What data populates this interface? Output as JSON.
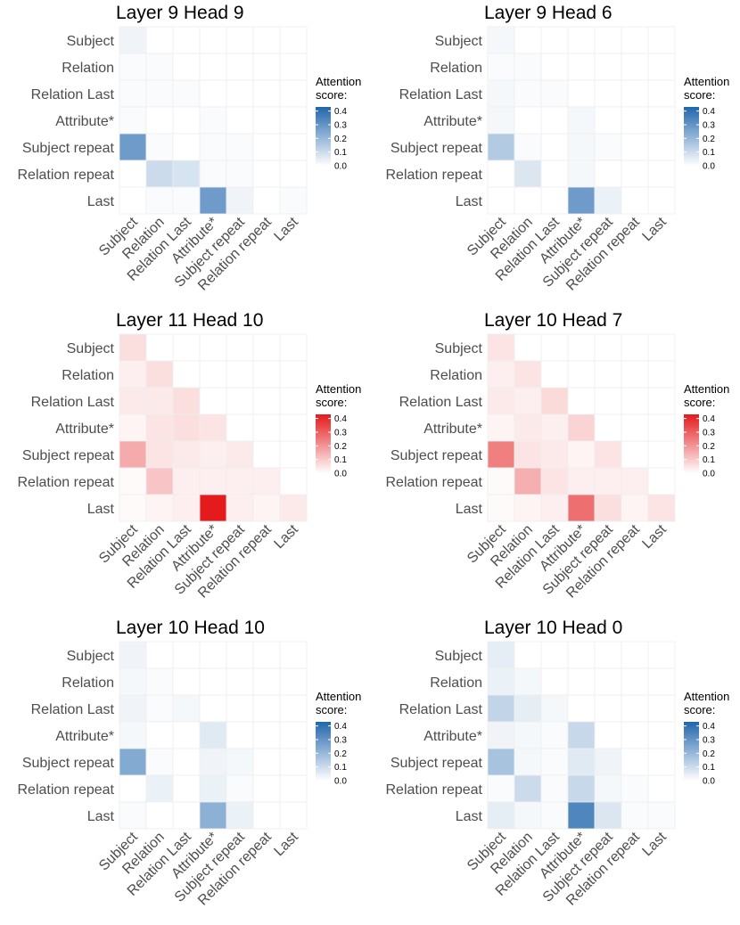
{
  "chart_data": [
    {
      "type": "heatmap",
      "title": "Layer 9 Head 9",
      "color_scale": "blue",
      "rows": [
        "Subject",
        "Relation",
        "Relation Last",
        "Attribute*",
        "Subject repeat",
        "Relation repeat",
        "Last"
      ],
      "columns": [
        "Subject",
        "Relation",
        "Relation Last",
        "Attribute*",
        "Subject repeat",
        "Relation repeat",
        "Last"
      ],
      "values": [
        [
          0.03,
          null,
          null,
          null,
          null,
          null,
          null
        ],
        [
          0.01,
          0.01,
          null,
          null,
          null,
          null,
          null
        ],
        [
          0.01,
          0.01,
          0.01,
          null,
          null,
          null,
          null
        ],
        [
          0.01,
          0.0,
          0.0,
          0.01,
          null,
          null,
          null
        ],
        [
          0.28,
          0.01,
          0.0,
          0.01,
          0.01,
          null,
          null
        ],
        [
          0.0,
          0.1,
          0.08,
          0.01,
          0.01,
          0.0,
          null
        ],
        [
          0.0,
          0.01,
          0.01,
          0.28,
          0.03,
          0.0,
          0.01
        ]
      ],
      "legend": {
        "title": [
          "Attention",
          "score:"
        ],
        "ticks": [
          "0.0",
          "0.1",
          "0.2",
          "0.3",
          "0.4"
        ],
        "range": [
          0,
          0.43
        ]
      }
    },
    {
      "type": "heatmap",
      "title": "Layer 9 Head 6",
      "color_scale": "blue",
      "rows": [
        "Subject",
        "Relation",
        "Relation Last",
        "Attribute*",
        "Subject repeat",
        "Relation repeat",
        "Last"
      ],
      "columns": [
        "Subject",
        "Relation",
        "Relation Last",
        "Attribute*",
        "Subject repeat",
        "Relation repeat",
        "Last"
      ],
      "values": [
        [
          0.02,
          null,
          null,
          null,
          null,
          null,
          null
        ],
        [
          0.01,
          0.01,
          null,
          null,
          null,
          null,
          null
        ],
        [
          0.02,
          0.01,
          0.01,
          null,
          null,
          null,
          null
        ],
        [
          0.02,
          0.0,
          0.0,
          0.02,
          null,
          null,
          null
        ],
        [
          0.15,
          0.01,
          0.0,
          0.02,
          0.01,
          null,
          null
        ],
        [
          0.0,
          0.07,
          0.0,
          0.02,
          0.0,
          0.0,
          null
        ],
        [
          0.0,
          0.0,
          0.0,
          0.28,
          0.04,
          0.0,
          0.0
        ]
      ],
      "legend": {
        "title": [
          "Attention",
          "score:"
        ],
        "ticks": [
          "0.0",
          "0.1",
          "0.2",
          "0.3",
          "0.4"
        ],
        "range": [
          0,
          0.43
        ]
      }
    },
    {
      "type": "heatmap",
      "title": "Layer 11 Head 10",
      "color_scale": "red",
      "rows": [
        "Subject",
        "Relation",
        "Relation Last",
        "Attribute*",
        "Subject repeat",
        "Relation repeat",
        "Last"
      ],
      "columns": [
        "Subject",
        "Relation",
        "Relation Last",
        "Attribute*",
        "Subject repeat",
        "Relation repeat",
        "Last"
      ],
      "values": [
        [
          0.06,
          null,
          null,
          null,
          null,
          null,
          null
        ],
        [
          0.03,
          0.06,
          null,
          null,
          null,
          null,
          null
        ],
        [
          0.04,
          0.04,
          0.06,
          null,
          null,
          null,
          null
        ],
        [
          0.02,
          0.05,
          0.06,
          0.05,
          null,
          null,
          null
        ],
        [
          0.16,
          0.05,
          0.04,
          0.03,
          0.04,
          null,
          null
        ],
        [
          0.01,
          0.11,
          0.03,
          0.03,
          0.03,
          0.03,
          null
        ],
        [
          0.01,
          0.02,
          0.03,
          0.43,
          0.03,
          0.02,
          0.04
        ]
      ],
      "legend": {
        "title": [
          "Attention",
          "score:"
        ],
        "ticks": [
          "0.0",
          "0.1",
          "0.2",
          "0.3",
          "0.4"
        ],
        "range": [
          0,
          0.43
        ]
      }
    },
    {
      "type": "heatmap",
      "title": "Layer 10 Head 7",
      "color_scale": "red",
      "rows": [
        "Subject",
        "Relation",
        "Relation Last",
        "Attribute*",
        "Subject repeat",
        "Relation repeat",
        "Last"
      ],
      "columns": [
        "Subject",
        "Relation",
        "Relation Last",
        "Attribute*",
        "Subject repeat",
        "Relation repeat",
        "Last"
      ],
      "values": [
        [
          0.05,
          null,
          null,
          null,
          null,
          null,
          null
        ],
        [
          0.03,
          0.05,
          null,
          null,
          null,
          null,
          null
        ],
        [
          0.04,
          0.03,
          0.07,
          null,
          null,
          null,
          null
        ],
        [
          0.02,
          0.04,
          0.03,
          0.08,
          null,
          null,
          null
        ],
        [
          0.24,
          0.05,
          0.04,
          0.02,
          0.05,
          null,
          null
        ],
        [
          0.01,
          0.15,
          0.05,
          0.03,
          0.03,
          0.03,
          null
        ],
        [
          0.01,
          0.02,
          0.03,
          0.27,
          0.06,
          0.02,
          0.05
        ]
      ],
      "legend": {
        "title": [
          "Attention",
          "score:"
        ],
        "ticks": [
          "0.0",
          "0.1",
          "0.2",
          "0.3",
          "0.4"
        ],
        "range": [
          0,
          0.43
        ]
      }
    },
    {
      "type": "heatmap",
      "title": "Layer 10 Head 10",
      "color_scale": "blue",
      "rows": [
        "Subject",
        "Relation",
        "Relation Last",
        "Attribute*",
        "Subject repeat",
        "Relation repeat",
        "Last"
      ],
      "columns": [
        "Subject",
        "Relation",
        "Relation Last",
        "Attribute*",
        "Subject repeat",
        "Relation repeat",
        "Last"
      ],
      "values": [
        [
          0.03,
          null,
          null,
          null,
          null,
          null,
          null
        ],
        [
          0.02,
          0.01,
          null,
          null,
          null,
          null,
          null
        ],
        [
          0.03,
          0.01,
          0.02,
          null,
          null,
          null,
          null
        ],
        [
          0.02,
          0.0,
          0.0,
          0.06,
          null,
          null,
          null
        ],
        [
          0.24,
          0.01,
          0.0,
          0.03,
          0.02,
          null,
          null
        ],
        [
          0.0,
          0.04,
          0.0,
          0.04,
          0.01,
          0.0,
          null
        ],
        [
          0.01,
          0.0,
          0.0,
          0.22,
          0.04,
          0.0,
          0.0
        ]
      ],
      "legend": {
        "title": [
          "Attention",
          "score:"
        ],
        "ticks": [
          "0.0",
          "0.1",
          "0.2",
          "0.3",
          "0.4"
        ],
        "range": [
          0,
          0.43
        ]
      }
    },
    {
      "type": "heatmap",
      "title": "Layer 10 Head 0",
      "color_scale": "blue",
      "rows": [
        "Subject",
        "Relation",
        "Relation Last",
        "Attribute*",
        "Subject repeat",
        "Relation repeat",
        "Last"
      ],
      "columns": [
        "Subject",
        "Relation",
        "Relation Last",
        "Attribute*",
        "Subject repeat",
        "Relation repeat",
        "Last"
      ],
      "values": [
        [
          0.05,
          null,
          null,
          null,
          null,
          null,
          null
        ],
        [
          0.04,
          0.02,
          null,
          null,
          null,
          null,
          null
        ],
        [
          0.12,
          0.05,
          0.02,
          null,
          null,
          null,
          null
        ],
        [
          0.03,
          0.02,
          0.01,
          0.11,
          null,
          null,
          null
        ],
        [
          0.17,
          0.02,
          0.01,
          0.06,
          0.03,
          null,
          null
        ],
        [
          0.01,
          0.1,
          0.01,
          0.11,
          0.02,
          0.01,
          null
        ],
        [
          0.05,
          0.02,
          0.01,
          0.34,
          0.07,
          0.01,
          0.01
        ]
      ],
      "legend": {
        "title": [
          "Attention",
          "score:"
        ],
        "ticks": [
          "0.0",
          "0.1",
          "0.2",
          "0.3",
          "0.4"
        ],
        "range": [
          0,
          0.43
        ]
      }
    }
  ],
  "colors": {
    "blue_high": "#2166ac",
    "red_high": "#e41a1c",
    "low": "#ffffff",
    "tile_border": "#eeeeee"
  }
}
